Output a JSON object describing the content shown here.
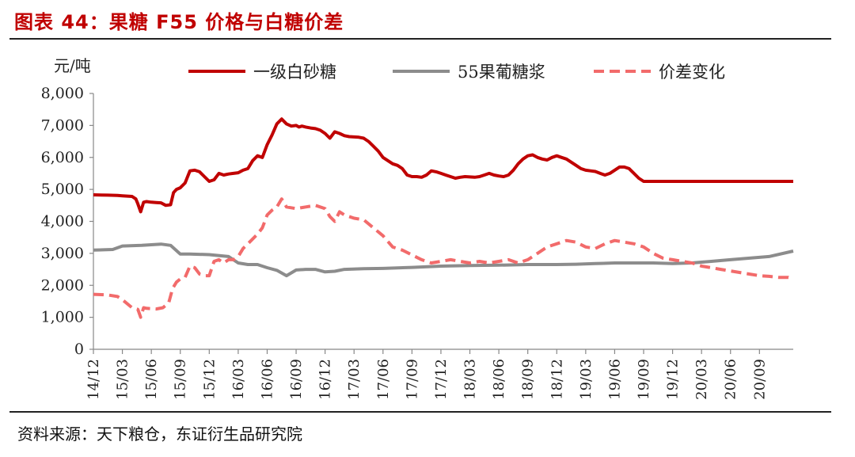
{
  "figure": {
    "title": "图表 44：果糖 F55 价格与白糖价差",
    "source": "资料来源：天下粮仓，东证衍生品研究院"
  },
  "chart_data": {
    "type": "line",
    "ylabel": "元/吨",
    "ylim": [
      0,
      8000
    ],
    "yticks": [
      0,
      1000,
      2000,
      3000,
      4000,
      5000,
      6000,
      7000,
      8000
    ],
    "ytick_labels": [
      "0",
      "1,000",
      "2,000",
      "3,000",
      "4,000",
      "5,000",
      "6,000",
      "7,000",
      "8,000"
    ],
    "xlim": [
      "2014-12",
      "2020-12"
    ],
    "xticks": [
      "14/12",
      "15/03",
      "15/06",
      "15/09",
      "15/12",
      "16/03",
      "16/06",
      "16/09",
      "16/12",
      "17/03",
      "17/06",
      "17/09",
      "17/12",
      "18/03",
      "18/06",
      "18/09",
      "18/12",
      "19/03",
      "19/06",
      "19/09",
      "19/12",
      "20/03",
      "20/06",
      "20/09"
    ],
    "legend": {
      "position": "top",
      "orientation": "horizontal"
    },
    "grid": false,
    "series": [
      {
        "name": "一级白砂糖",
        "color": "#c00000",
        "style": "solid",
        "width": 4,
        "x": [
          0.0,
          1.5,
          2.5,
          3.0,
          4.0,
          4.4,
          4.6,
          4.9,
          5.2,
          5.5,
          6.0,
          6.5,
          7.0,
          7.5,
          8.0,
          8.3,
          8.6,
          9.0,
          9.5,
          10.0,
          10.5,
          11.0,
          11.5,
          12.0,
          12.5,
          13.0,
          13.5,
          14.0,
          14.5,
          15.0,
          15.5,
          16.0,
          16.5,
          17.0,
          17.5,
          18.0,
          18.5,
          19.0,
          19.5,
          20.0,
          20.5,
          21.0,
          21.3,
          21.6,
          22.0,
          22.5,
          23.0,
          23.5,
          24.0,
          24.5,
          25.0,
          25.5,
          26.0,
          26.5,
          27.0,
          27.5,
          28.0,
          28.5,
          29.0,
          29.5,
          30.0,
          30.5,
          31.0,
          31.5,
          32.0,
          32.5,
          33.0,
          33.5,
          34.0,
          34.5,
          35.0,
          35.5,
          36.0,
          36.5,
          37.0,
          37.5,
          38.0,
          38.5,
          39.0,
          39.5,
          40.0,
          40.5,
          41.0,
          41.5,
          42.0,
          42.5,
          43.0,
          43.5,
          44.0,
          44.5,
          45.0,
          45.5,
          46.0,
          46.5,
          47.0,
          47.5,
          48.0,
          48.5,
          49.0,
          49.5,
          50.0,
          50.5,
          51.0,
          51.5,
          52.0,
          52.5,
          53.0,
          53.5,
          54.0,
          54.5,
          55.0,
          55.5,
          56.0,
          56.5,
          57.0,
          57.5,
          58.0,
          58.5,
          59.0,
          59.5,
          60.0,
          60.5,
          61.0,
          61.5,
          62.0,
          62.5,
          63.0,
          63.5,
          64.0,
          64.5,
          65.0,
          65.5,
          66.0,
          66.5,
          67.0,
          67.5,
          68.0,
          68.5,
          69.0,
          69.5,
          70.0,
          70.5,
          71.0,
          71.5,
          72.0,
          72.5
        ],
        "values": [
          4830,
          4820,
          4810,
          4800,
          4780,
          4700,
          4550,
          4300,
          4600,
          4620,
          4600,
          4590,
          4580,
          4500,
          4520,
          4900,
          5000,
          5050,
          5200,
          5580,
          5600,
          5550,
          5400,
          5250,
          5300,
          5500,
          5450,
          5480,
          5500,
          5520,
          5600,
          5650,
          5900,
          6050,
          6000,
          6400,
          6700,
          7050,
          7200,
          7050,
          6980,
          7000,
          6950,
          6980,
          6950,
          6920,
          6900,
          6850,
          6750,
          6600,
          6800,
          6750,
          6680,
          6650,
          6640,
          6630,
          6600,
          6500,
          6350,
          6200,
          6000,
          5900,
          5800,
          5750,
          5650,
          5450,
          5400,
          5400,
          5380,
          5450,
          5580,
          5550,
          5500,
          5450,
          5400,
          5350,
          5380,
          5400,
          5390,
          5380,
          5400,
          5450,
          5500,
          5450,
          5420,
          5400,
          5450,
          5600,
          5800,
          5950,
          6050,
          6080,
          6000,
          5950,
          5920,
          6000,
          6050,
          6000,
          5950,
          5850,
          5750,
          5650,
          5600,
          5580,
          5560,
          5500,
          5450,
          5500,
          5600,
          5700,
          5700,
          5650,
          5500,
          5350,
          5250,
          5250,
          5250,
          5250,
          5250,
          5250,
          5250,
          5250,
          5250,
          5250,
          5250,
          5250,
          5250,
          5250,
          5250,
          5250,
          5250,
          5250,
          5250,
          5250,
          5250,
          5250,
          5250,
          5250,
          5250,
          5250,
          5250,
          5250,
          5250,
          5250,
          5250,
          5250
        ]
      },
      {
        "name": "55果葡糖浆",
        "color": "#8c8c8c",
        "style": "solid",
        "width": 4,
        "x": [
          0.0,
          2.0,
          3.0,
          5.0,
          7.0,
          8.0,
          9.0,
          10.0,
          12.0,
          14.0,
          15.0,
          16.0,
          17.0,
          18.0,
          19.0,
          20.0,
          21.0,
          22.0,
          23.0,
          24.0,
          25.0,
          26.0,
          28.0,
          30.0,
          33.0,
          36.0,
          39.0,
          42.0,
          45.0,
          48.0,
          50.0,
          52.0,
          54.0,
          56.0,
          58.0,
          60.0,
          62.0,
          64.0,
          66.0,
          68.0,
          70.0,
          72.5
        ],
        "values": [
          3100,
          3120,
          3230,
          3250,
          3290,
          3250,
          2980,
          2980,
          2960,
          2900,
          2700,
          2650,
          2650,
          2550,
          2470,
          2300,
          2480,
          2500,
          2500,
          2420,
          2440,
          2500,
          2520,
          2530,
          2560,
          2600,
          2620,
          2630,
          2650,
          2650,
          2660,
          2680,
          2700,
          2700,
          2700,
          2680,
          2700,
          2750,
          2800,
          2850,
          2900,
          3070
        ]
      },
      {
        "name": "价差变化",
        "color": "#f26b6b",
        "style": "dashed",
        "width": 4,
        "x": [
          0.0,
          1.5,
          2.5,
          3.0,
          4.0,
          4.6,
          4.9,
          5.2,
          5.5,
          6.5,
          7.2,
          7.8,
          8.2,
          8.6,
          9.0,
          9.5,
          10.0,
          10.5,
          11.0,
          11.5,
          12.0,
          12.5,
          13.0,
          13.5,
          14.0,
          14.5,
          15.0,
          15.5,
          16.0,
          16.5,
          17.0,
          17.5,
          18.0,
          18.5,
          19.0,
          19.5,
          20.0,
          21.0,
          22.0,
          23.0,
          24.0,
          24.5,
          25.0,
          25.5,
          26.0,
          27.0,
          28.0,
          29.0,
          30.0,
          31.0,
          32.0,
          33.0,
          34.0,
          34.5,
          35.0,
          36.0,
          37.0,
          38.0,
          39.0,
          40.0,
          41.0,
          42.0,
          43.0,
          44.0,
          45.0,
          46.0,
          47.0,
          48.0,
          49.0,
          50.0,
          51.0,
          52.0,
          53.0,
          54.0,
          55.0,
          56.0,
          57.0,
          58.0,
          59.0,
          60.0,
          61.0,
          62.0,
          63.0,
          64.0,
          65.0,
          66.0,
          67.0,
          68.0,
          69.0,
          70.0,
          71.0,
          72.0,
          72.5
        ],
        "values": [
          1720,
          1700,
          1650,
          1550,
          1300,
          1250,
          1000,
          1300,
          1280,
          1260,
          1300,
          1450,
          1900,
          2100,
          2200,
          2250,
          2600,
          2550,
          2350,
          2300,
          2300,
          2750,
          2800,
          2700,
          2800,
          2800,
          2900,
          3150,
          3300,
          3450,
          3600,
          3800,
          4200,
          4350,
          4450,
          4700,
          4450,
          4400,
          4450,
          4500,
          4400,
          4150,
          4000,
          4300,
          4200,
          4100,
          4050,
          3800,
          3550,
          3200,
          3100,
          2950,
          2800,
          2750,
          2700,
          2750,
          2800,
          2750,
          2700,
          2750,
          2700,
          2750,
          2800,
          2700,
          2800,
          3000,
          3200,
          3300,
          3400,
          3350,
          3200,
          3150,
          3300,
          3400,
          3350,
          3300,
          3200,
          3000,
          2850,
          2800,
          2750,
          2700,
          2600,
          2550,
          2500,
          2450,
          2400,
          2350,
          2300,
          2280,
          2250,
          2250,
          2200
        ]
      }
    ]
  }
}
